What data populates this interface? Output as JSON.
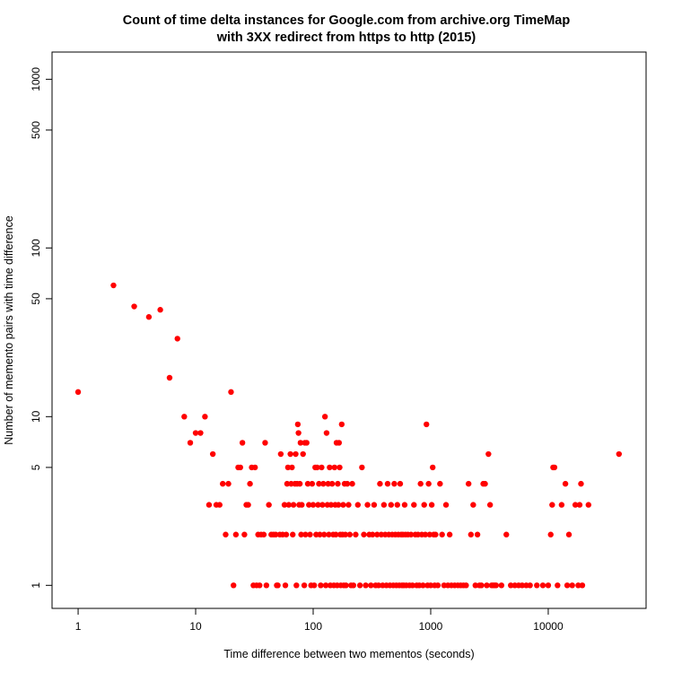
{
  "chart_data": {
    "type": "scatter",
    "title": [
      "Count of time delta instances for Google.com from archive.org TimeMap",
      "with 3XX redirect from https to http (2015)"
    ],
    "xlabel": "Time difference between two mementos (seconds)",
    "ylabel": "Number of memento pairs with time difference",
    "x_scale": "log",
    "y_scale": "log",
    "xlim": [
      0.6,
      68000
    ],
    "ylim": [
      0.73,
      1450
    ],
    "x_ticks": [
      1,
      10,
      100,
      1000,
      10000
    ],
    "x_tick_labels": [
      "1",
      "10",
      "100",
      "1000",
      "10000"
    ],
    "y_ticks": [
      1,
      5,
      10,
      50,
      100,
      500,
      1000
    ],
    "y_tick_labels": [
      "1",
      "5",
      "10",
      "50",
      "100",
      "500",
      "1000"
    ],
    "grid": false,
    "point_color": "#ff0000",
    "points": [
      [
        1,
        14
      ],
      [
        2,
        60
      ],
      [
        3,
        45
      ],
      [
        4,
        39
      ],
      [
        5,
        43
      ],
      [
        6,
        17
      ],
      [
        7,
        29
      ],
      [
        8,
        10
      ],
      [
        9,
        7
      ],
      [
        10,
        8
      ],
      [
        11,
        8
      ],
      [
        12,
        10
      ],
      [
        13,
        3
      ],
      [
        14,
        6
      ],
      [
        15,
        3
      ],
      [
        16,
        3
      ],
      [
        17,
        4
      ],
      [
        18,
        2
      ],
      [
        19,
        4
      ],
      [
        20,
        14
      ],
      [
        21,
        1
      ],
      [
        22,
        2
      ],
      [
        23,
        5
      ],
      [
        24,
        5
      ],
      [
        25,
        7
      ],
      [
        26,
        2
      ],
      [
        27,
        3
      ],
      [
        28,
        3
      ],
      [
        29,
        4
      ],
      [
        30,
        5
      ],
      [
        31,
        1
      ],
      [
        32,
        5
      ],
      [
        33,
        1
      ],
      [
        34,
        2
      ],
      [
        35,
        1
      ],
      [
        36,
        2
      ],
      [
        38,
        2
      ],
      [
        39,
        7
      ],
      [
        40,
        1
      ],
      [
        42,
        3
      ],
      [
        44,
        2
      ],
      [
        46,
        2
      ],
      [
        48,
        2
      ],
      [
        49,
        1
      ],
      [
        50,
        1
      ],
      [
        52,
        2
      ],
      [
        53,
        6
      ],
      [
        55,
        2
      ],
      [
        57,
        3
      ],
      [
        58,
        1
      ],
      [
        59,
        2
      ],
      [
        60,
        4
      ],
      [
        61,
        5
      ],
      [
        62,
        3
      ],
      [
        64,
        6
      ],
      [
        65,
        4
      ],
      [
        66,
        5
      ],
      [
        67,
        2
      ],
      [
        68,
        3
      ],
      [
        70,
        4
      ],
      [
        71,
        6
      ],
      [
        72,
        1
      ],
      [
        73,
        4
      ],
      [
        74,
        9
      ],
      [
        75,
        8
      ],
      [
        76,
        3
      ],
      [
        77,
        4
      ],
      [
        78,
        7
      ],
      [
        79,
        2
      ],
      [
        80,
        3
      ],
      [
        82,
        6
      ],
      [
        84,
        1
      ],
      [
        85,
        7
      ],
      [
        86,
        2
      ],
      [
        88,
        7
      ],
      [
        90,
        4
      ],
      [
        92,
        3
      ],
      [
        94,
        2
      ],
      [
        96,
        1
      ],
      [
        98,
        4
      ],
      [
        100,
        3
      ],
      [
        102,
        1
      ],
      [
        104,
        5
      ],
      [
        106,
        2
      ],
      [
        108,
        5
      ],
      [
        110,
        3
      ],
      [
        112,
        4
      ],
      [
        114,
        2
      ],
      [
        116,
        1
      ],
      [
        118,
        5
      ],
      [
        120,
        3
      ],
      [
        122,
        4
      ],
      [
        124,
        2
      ],
      [
        126,
        10
      ],
      [
        128,
        1
      ],
      [
        130,
        8
      ],
      [
        132,
        3
      ],
      [
        134,
        4
      ],
      [
        136,
        2
      ],
      [
        138,
        5
      ],
      [
        140,
        1
      ],
      [
        142,
        3
      ],
      [
        145,
        4
      ],
      [
        148,
        2
      ],
      [
        150,
        1
      ],
      [
        152,
        5
      ],
      [
        154,
        3
      ],
      [
        156,
        2
      ],
      [
        158,
        7
      ],
      [
        160,
        1
      ],
      [
        162,
        4
      ],
      [
        164,
        3
      ],
      [
        166,
        7
      ],
      [
        168,
        5
      ],
      [
        170,
        2
      ],
      [
        172,
        1
      ],
      [
        175,
        9
      ],
      [
        178,
        2
      ],
      [
        180,
        3
      ],
      [
        182,
        1
      ],
      [
        185,
        4
      ],
      [
        188,
        2
      ],
      [
        190,
        1
      ],
      [
        195,
        4
      ],
      [
        200,
        3
      ],
      [
        205,
        2
      ],
      [
        210,
        1
      ],
      [
        215,
        4
      ],
      [
        220,
        1
      ],
      [
        230,
        2
      ],
      [
        240,
        3
      ],
      [
        250,
        1
      ],
      [
        260,
        5
      ],
      [
        270,
        2
      ],
      [
        280,
        1
      ],
      [
        290,
        3
      ],
      [
        300,
        2
      ],
      [
        310,
        1
      ],
      [
        320,
        2
      ],
      [
        330,
        3
      ],
      [
        340,
        1
      ],
      [
        350,
        2
      ],
      [
        360,
        1
      ],
      [
        370,
        4
      ],
      [
        380,
        2
      ],
      [
        390,
        1
      ],
      [
        400,
        3
      ],
      [
        410,
        2
      ],
      [
        420,
        1
      ],
      [
        430,
        4
      ],
      [
        440,
        2
      ],
      [
        450,
        1
      ],
      [
        460,
        3
      ],
      [
        470,
        2
      ],
      [
        480,
        1
      ],
      [
        490,
        4
      ],
      [
        500,
        2
      ],
      [
        510,
        1
      ],
      [
        520,
        3
      ],
      [
        530,
        2
      ],
      [
        540,
        1
      ],
      [
        550,
        4
      ],
      [
        560,
        2
      ],
      [
        570,
        1
      ],
      [
        580,
        2
      ],
      [
        590,
        1
      ],
      [
        600,
        3
      ],
      [
        610,
        2
      ],
      [
        620,
        1
      ],
      [
        640,
        2
      ],
      [
        660,
        1
      ],
      [
        680,
        2
      ],
      [
        700,
        1
      ],
      [
        720,
        3
      ],
      [
        740,
        2
      ],
      [
        760,
        1
      ],
      [
        780,
        2
      ],
      [
        800,
        1
      ],
      [
        820,
        4
      ],
      [
        840,
        2
      ],
      [
        860,
        1
      ],
      [
        880,
        3
      ],
      [
        900,
        2
      ],
      [
        920,
        9
      ],
      [
        940,
        1
      ],
      [
        960,
        4
      ],
      [
        980,
        2
      ],
      [
        1000,
        1
      ],
      [
        1020,
        3
      ],
      [
        1040,
        5
      ],
      [
        1060,
        2
      ],
      [
        1080,
        1
      ],
      [
        1100,
        2
      ],
      [
        1150,
        1
      ],
      [
        1200,
        4
      ],
      [
        1250,
        2
      ],
      [
        1300,
        1
      ],
      [
        1350,
        3
      ],
      [
        1400,
        1
      ],
      [
        1450,
        2
      ],
      [
        1500,
        1
      ],
      [
        1600,
        1
      ],
      [
        1700,
        1
      ],
      [
        1800,
        1
      ],
      [
        1900,
        1
      ],
      [
        2000,
        1
      ],
      [
        2100,
        4
      ],
      [
        2200,
        2
      ],
      [
        2300,
        3
      ],
      [
        2400,
        1
      ],
      [
        2500,
        2
      ],
      [
        2600,
        1
      ],
      [
        2700,
        1
      ],
      [
        2800,
        4
      ],
      [
        2900,
        4
      ],
      [
        3000,
        1
      ],
      [
        3100,
        6
      ],
      [
        3200,
        3
      ],
      [
        3300,
        1
      ],
      [
        3400,
        1
      ],
      [
        3500,
        1
      ],
      [
        3600,
        1
      ],
      [
        4000,
        1
      ],
      [
        4400,
        2
      ],
      [
        4800,
        1
      ],
      [
        5200,
        1
      ],
      [
        5600,
        1
      ],
      [
        6000,
        1
      ],
      [
        6500,
        1
      ],
      [
        7000,
        1
      ],
      [
        8000,
        1
      ],
      [
        9000,
        1
      ],
      [
        10000,
        1
      ],
      [
        10500,
        2
      ],
      [
        10800,
        3
      ],
      [
        11000,
        5
      ],
      [
        11300,
        5
      ],
      [
        12000,
        1
      ],
      [
        13000,
        3
      ],
      [
        14000,
        4
      ],
      [
        14500,
        1
      ],
      [
        15000,
        2
      ],
      [
        16000,
        1
      ],
      [
        17000,
        3
      ],
      [
        18000,
        1
      ],
      [
        18500,
        3
      ],
      [
        19000,
        4
      ],
      [
        19500,
        1
      ],
      [
        22000,
        3
      ],
      [
        40000,
        6
      ]
    ]
  }
}
